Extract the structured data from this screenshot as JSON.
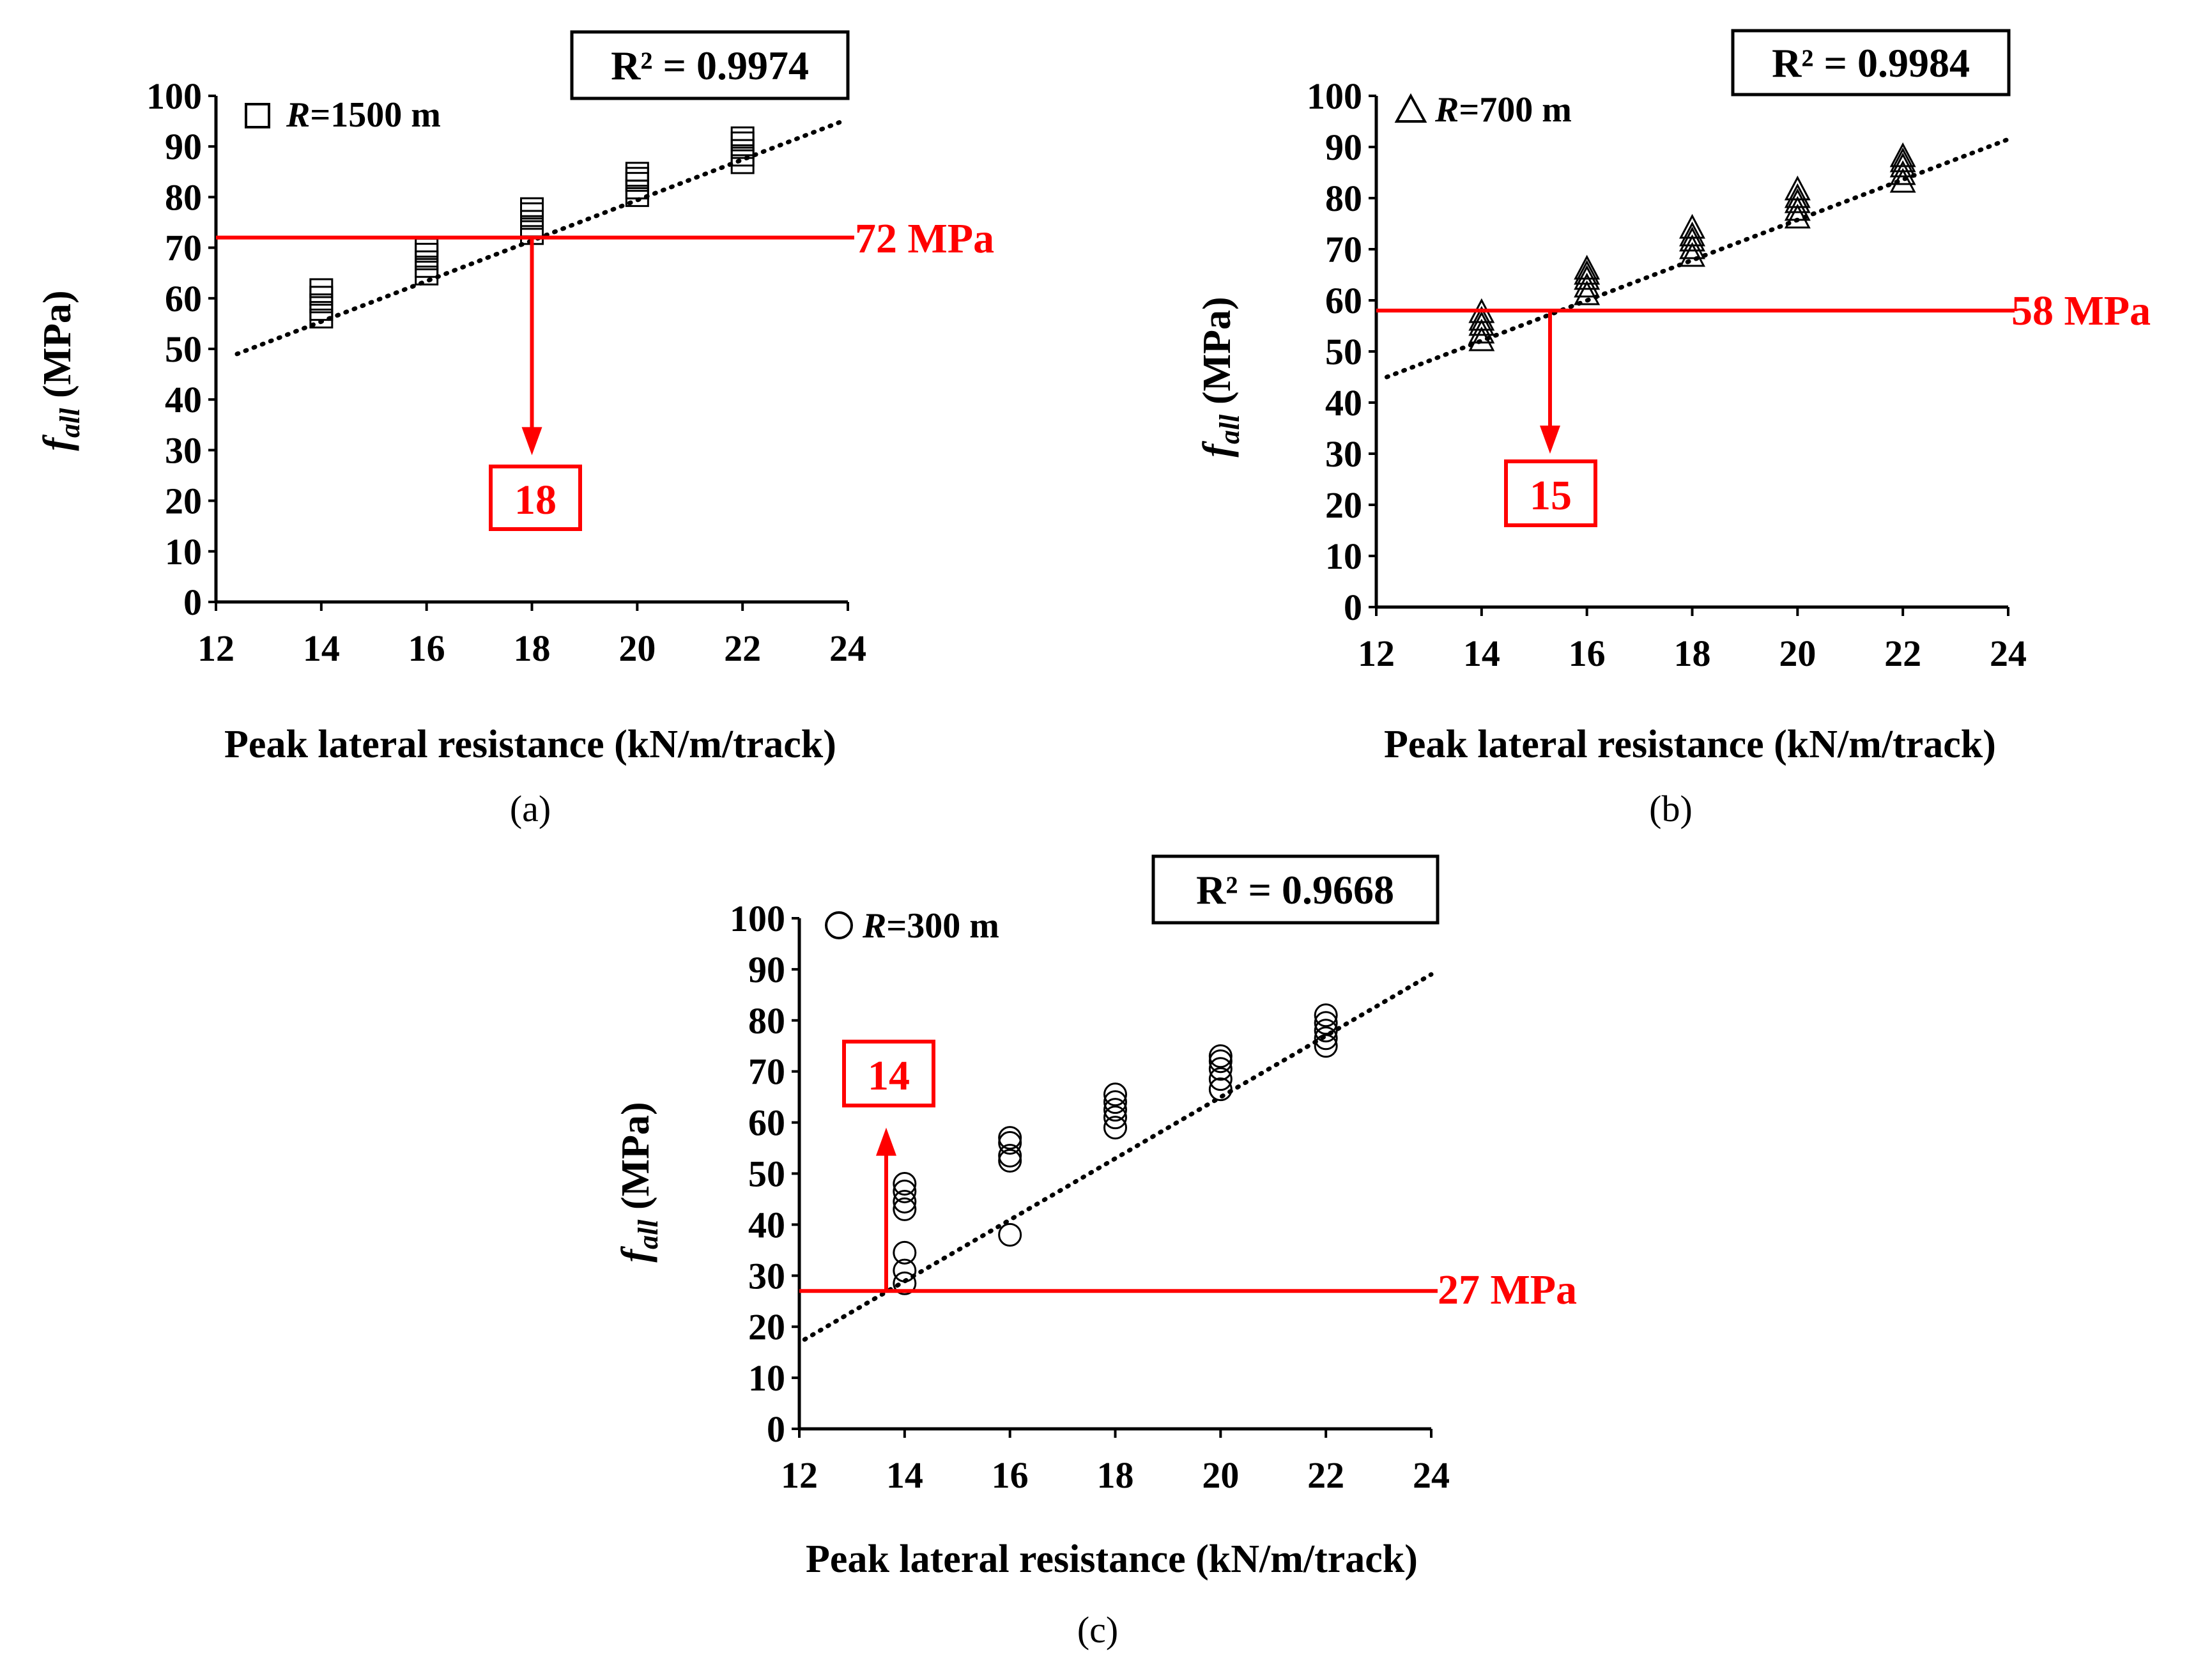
{
  "figure": {
    "panels": [
      {
        "caption": "(a)",
        "r2_label": "R² = 0.9974",
        "legend_symbol": "□",
        "legend_r": "R",
        "legend_rest": "=1500 m",
        "threshold_label": "72 MPa",
        "answer_label": "18"
      },
      {
        "caption": "(b)",
        "r2_label": "R² = 0.9984",
        "legend_symbol": "△",
        "legend_r": "R",
        "legend_rest": "=700 m",
        "threshold_label": "58 MPa",
        "answer_label": "15"
      },
      {
        "caption": "(c)",
        "r2_label": "R² = 0.9668",
        "legend_symbol": "○",
        "legend_r": "R",
        "legend_rest": "=300 m",
        "threshold_label": "27 MPa",
        "answer_label": "14"
      }
    ]
  },
  "chart_data": [
    {
      "type": "scatter",
      "title": "(a)",
      "marker": "square",
      "series_name": "R=1500 m",
      "xlabel": "Peak lateral resistance (kN/m/track)",
      "ylabel_main": "f",
      "ylabel_sub": "all",
      "ylabel_unit": " (MPa)",
      "xlim": [
        12,
        24
      ],
      "ylim": [
        0,
        100
      ],
      "xticks": [
        12,
        14,
        16,
        18,
        20,
        22,
        24
      ],
      "yticks": [
        0,
        10,
        20,
        30,
        40,
        50,
        60,
        70,
        80,
        90,
        100
      ],
      "points": [
        [
          14,
          56
        ],
        [
          14,
          57.5
        ],
        [
          14,
          59
        ],
        [
          14,
          60.5
        ],
        [
          14,
          62
        ],
        [
          16,
          64.5
        ],
        [
          16,
          66
        ],
        [
          16,
          67.5
        ],
        [
          16,
          69
        ],
        [
          16,
          70
        ],
        [
          18,
          72.5
        ],
        [
          18,
          74
        ],
        [
          18,
          75.5
        ],
        [
          18,
          77
        ],
        [
          18,
          78
        ],
        [
          20,
          80
        ],
        [
          20,
          81.5
        ],
        [
          20,
          83
        ],
        [
          20,
          84
        ],
        [
          20,
          85
        ],
        [
          22,
          86.5
        ],
        [
          22,
          88
        ],
        [
          22,
          89.5
        ],
        [
          22,
          91
        ],
        [
          22,
          92
        ]
      ],
      "trendline": {
        "x": [
          12.4,
          23.9
        ],
        "y": [
          49,
          95
        ],
        "r2": 0.9974
      },
      "threshold": {
        "y": 72,
        "x_intersect": 18,
        "direction": "down",
        "arrow_to_y": 29
      }
    },
    {
      "type": "scatter",
      "title": "(b)",
      "marker": "triangle",
      "series_name": "R=700 m",
      "xlabel": "Peak lateral resistance (kN/m/track)",
      "ylabel_main": "f",
      "ylabel_sub": "all",
      "ylabel_unit": " (MPa)",
      "xlim": [
        12,
        24
      ],
      "ylim": [
        0,
        100
      ],
      "xticks": [
        12,
        14,
        16,
        18,
        20,
        22,
        24
      ],
      "yticks": [
        0,
        10,
        20,
        30,
        40,
        50,
        60,
        70,
        80,
        90,
        100
      ],
      "points": [
        [
          14,
          52
        ],
        [
          14,
          53.5
        ],
        [
          14,
          55
        ],
        [
          14,
          56
        ],
        [
          14,
          57.5
        ],
        [
          16,
          61
        ],
        [
          16,
          62.5
        ],
        [
          16,
          64
        ],
        [
          16,
          65
        ],
        [
          16,
          66
        ],
        [
          18,
          68.5
        ],
        [
          18,
          70
        ],
        [
          18,
          71.5
        ],
        [
          18,
          72.5
        ],
        [
          18,
          74
        ],
        [
          20,
          76
        ],
        [
          20,
          77.5
        ],
        [
          20,
          79
        ],
        [
          20,
          80
        ],
        [
          20,
          81.5
        ],
        [
          22,
          83
        ],
        [
          22,
          84.5
        ],
        [
          22,
          86
        ],
        [
          22,
          87
        ],
        [
          22,
          88
        ]
      ],
      "trendline": {
        "x": [
          12.2,
          24
        ],
        "y": [
          45,
          91.5
        ],
        "r2": 0.9984
      },
      "threshold": {
        "y": 58,
        "x_intersect": 15.3,
        "direction": "down",
        "arrow_to_y": 30
      }
    },
    {
      "type": "scatter",
      "title": "(c)",
      "marker": "circle",
      "series_name": "R=300 m",
      "xlabel": "Peak lateral resistance (kN/m/track)",
      "ylabel_main": "f",
      "ylabel_sub": "all",
      "ylabel_unit": " (MPa)",
      "xlim": [
        12,
        24
      ],
      "ylim": [
        0,
        100
      ],
      "xticks": [
        12,
        14,
        16,
        18,
        20,
        22,
        24
      ],
      "yticks": [
        0,
        10,
        20,
        30,
        40,
        50,
        60,
        70,
        80,
        90,
        100
      ],
      "points": [
        [
          14,
          28.5
        ],
        [
          14,
          31
        ],
        [
          14,
          34.5
        ],
        [
          14,
          43
        ],
        [
          14,
          44.5
        ],
        [
          14,
          46.5
        ],
        [
          14,
          48
        ],
        [
          16,
          38
        ],
        [
          16,
          52.5
        ],
        [
          16,
          53.5
        ],
        [
          16,
          56
        ],
        [
          16,
          57
        ],
        [
          18,
          59
        ],
        [
          18,
          61
        ],
        [
          18,
          62.5
        ],
        [
          18,
          64
        ],
        [
          18,
          65.5
        ],
        [
          20,
          66.5
        ],
        [
          20,
          68.5
        ],
        [
          20,
          70.5
        ],
        [
          20,
          72
        ],
        [
          20,
          73
        ],
        [
          22,
          75
        ],
        [
          22,
          76.5
        ],
        [
          22,
          78
        ],
        [
          22,
          79.5
        ],
        [
          22,
          81
        ]
      ],
      "trendline": {
        "x": [
          12.1,
          24
        ],
        "y": [
          17.5,
          89
        ],
        "r2": 0.9668
      },
      "threshold": {
        "y": 27,
        "x_intersect": 13.65,
        "direction": "up",
        "arrow_to_y": 59
      }
    }
  ]
}
